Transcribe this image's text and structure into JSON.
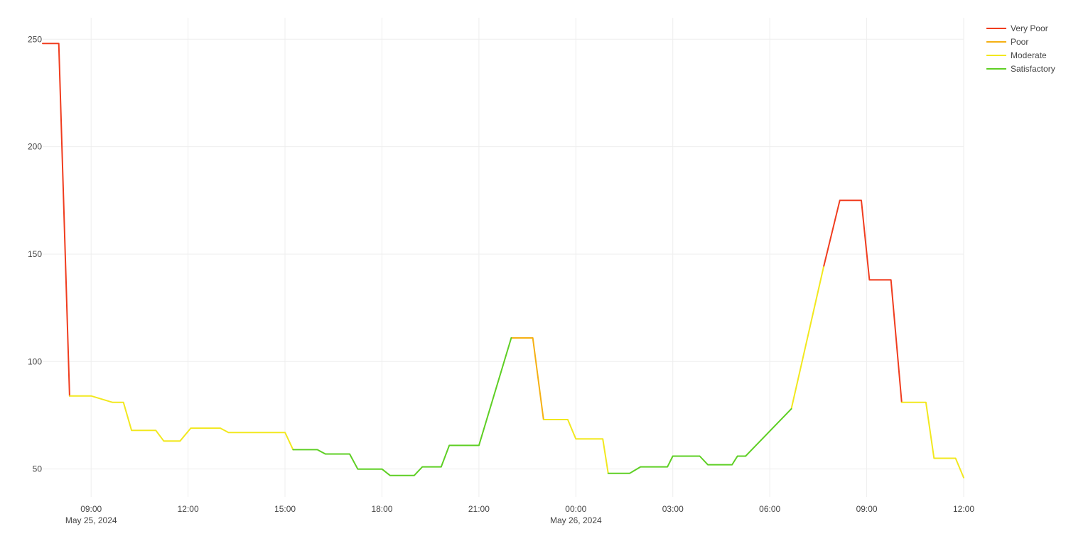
{
  "chart_data": {
    "type": "line",
    "title": "",
    "xlabel": "",
    "ylabel": "",
    "x_range": [
      "2024-05-25T07:30",
      "2024-05-26T12:00"
    ],
    "y_range": [
      37,
      260
    ],
    "grid": true,
    "legend_position": "top-right",
    "x_ticks": [
      {
        "t": "2024-05-25T09:00",
        "label": "09:00",
        "sublabel": "May 25, 2024"
      },
      {
        "t": "2024-05-25T12:00",
        "label": "12:00",
        "sublabel": ""
      },
      {
        "t": "2024-05-25T15:00",
        "label": "15:00",
        "sublabel": ""
      },
      {
        "t": "2024-05-25T18:00",
        "label": "18:00",
        "sublabel": ""
      },
      {
        "t": "2024-05-25T21:00",
        "label": "21:00",
        "sublabel": ""
      },
      {
        "t": "2024-05-26T00:00",
        "label": "00:00",
        "sublabel": "May 26, 2024"
      },
      {
        "t": "2024-05-26T03:00",
        "label": "03:00",
        "sublabel": ""
      },
      {
        "t": "2024-05-26T06:00",
        "label": "06:00",
        "sublabel": ""
      },
      {
        "t": "2024-05-26T09:00",
        "label": "09:00",
        "sublabel": ""
      },
      {
        "t": "2024-05-26T12:00",
        "label": "12:00",
        "sublabel": ""
      }
    ],
    "y_ticks": [
      50,
      100,
      150,
      200,
      250
    ],
    "series": [
      {
        "name": "Very Poor",
        "color": "#f03c1e",
        "segments": [
          [
            [
              "2024-05-25T07:30",
              248
            ],
            [
              "2024-05-25T08:00",
              248
            ],
            [
              "2024-05-25T08:20",
              84
            ]
          ],
          [
            [
              "2024-05-26T07:40",
              144
            ],
            [
              "2024-05-26T08:10",
              175
            ],
            [
              "2024-05-26T08:50",
              175
            ],
            [
              "2024-05-26T09:05",
              138
            ],
            [
              "2024-05-26T09:45",
              138
            ],
            [
              "2024-05-26T10:05",
              81
            ]
          ]
        ]
      },
      {
        "name": "Poor",
        "color": "#f5b013",
        "segments": [
          [
            [
              "2024-05-25T22:00",
              111
            ],
            [
              "2024-05-25T22:40",
              111
            ],
            [
              "2024-05-25T23:00",
              73
            ]
          ]
        ]
      },
      {
        "name": "Moderate",
        "color": "#f2e81e",
        "segments": [
          [
            [
              "2024-05-25T08:20",
              84
            ],
            [
              "2024-05-25T09:00",
              84
            ],
            [
              "2024-05-25T09:40",
              81
            ],
            [
              "2024-05-25T10:00",
              81
            ],
            [
              "2024-05-25T10:15",
              68
            ],
            [
              "2024-05-25T11:00",
              68
            ],
            [
              "2024-05-25T11:15",
              63
            ],
            [
              "2024-05-25T11:45",
              63
            ],
            [
              "2024-05-25T12:05",
              69
            ],
            [
              "2024-05-25T13:00",
              69
            ],
            [
              "2024-05-25T13:15",
              67
            ],
            [
              "2024-05-25T15:00",
              67
            ],
            [
              "2024-05-25T15:15",
              59
            ]
          ],
          [
            [
              "2024-05-25T23:00",
              73
            ],
            [
              "2024-05-25T23:45",
              73
            ],
            [
              "2024-05-26T00:00",
              64
            ],
            [
              "2024-05-26T00:50",
              64
            ],
            [
              "2024-05-26T01:00",
              48
            ]
          ],
          [
            [
              "2024-05-26T06:40",
              78
            ],
            [
              "2024-05-26T07:40",
              144
            ]
          ],
          [
            [
              "2024-05-26T10:05",
              81
            ],
            [
              "2024-05-26T10:50",
              81
            ],
            [
              "2024-05-26T11:05",
              55
            ],
            [
              "2024-05-26T11:45",
              55
            ],
            [
              "2024-05-26T12:00",
              46
            ]
          ]
        ]
      },
      {
        "name": "Satisfactory",
        "color": "#5ecf24",
        "segments": [
          [
            [
              "2024-05-25T15:15",
              59
            ],
            [
              "2024-05-25T16:00",
              59
            ],
            [
              "2024-05-25T16:15",
              57
            ],
            [
              "2024-05-25T17:00",
              57
            ],
            [
              "2024-05-25T17:15",
              50
            ],
            [
              "2024-05-25T18:00",
              50
            ],
            [
              "2024-05-25T18:15",
              47
            ],
            [
              "2024-05-25T19:00",
              47
            ],
            [
              "2024-05-25T19:15",
              51
            ],
            [
              "2024-05-25T19:50",
              51
            ],
            [
              "2024-05-25T20:05",
              61
            ],
            [
              "2024-05-25T21:00",
              61
            ],
            [
              "2024-05-25T22:00",
              111
            ]
          ],
          [
            [
              "2024-05-26T01:00",
              48
            ],
            [
              "2024-05-26T01:40",
              48
            ],
            [
              "2024-05-26T02:00",
              51
            ],
            [
              "2024-05-26T02:50",
              51
            ],
            [
              "2024-05-26T03:00",
              56
            ],
            [
              "2024-05-26T03:50",
              56
            ],
            [
              "2024-05-26T04:05",
              52
            ],
            [
              "2024-05-26T04:50",
              52
            ],
            [
              "2024-05-26T05:00",
              56
            ],
            [
              "2024-05-26T05:15",
              56
            ],
            [
              "2024-05-26T06:40",
              78
            ]
          ]
        ]
      }
    ]
  }
}
